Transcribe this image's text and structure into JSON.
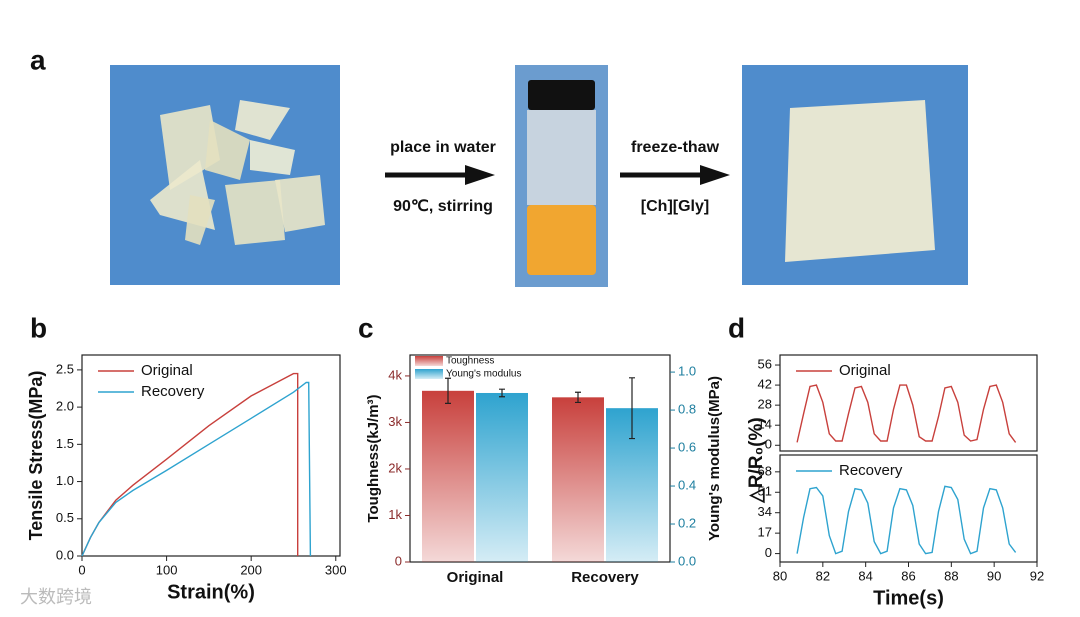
{
  "panel_a": {
    "label": "a",
    "step1_top": "place in water",
    "step1_bottom": "90℃, stirring",
    "step2_top": "freeze-thaw",
    "step2_bottom": "[Ch][Gly]"
  },
  "watermark": "大数跨境",
  "chart_data": [
    {
      "type": "line",
      "panel": "b",
      "xlabel": "Strain(%)",
      "ylabel": "Tensile Stress(MPa)",
      "xlim": [
        0,
        305
      ],
      "xticks": [
        0,
        100,
        200,
        300
      ],
      "ylim": [
        0,
        2.7
      ],
      "yticks": [
        {
          "value": 0,
          "label": "0.0"
        },
        0.5,
        {
          "value": 1,
          "label": "1.0"
        },
        1.5,
        {
          "value": 2,
          "label": "2.0"
        },
        2.5
      ],
      "legend": "upper left",
      "series": [
        {
          "name": "Original",
          "color": "#c8403c",
          "x": [
            0,
            10,
            20,
            40,
            60,
            100,
            150,
            200,
            250,
            255,
            255
          ],
          "values": [
            0,
            0.25,
            0.45,
            0.75,
            0.95,
            1.3,
            1.75,
            2.15,
            2.45,
            2.45,
            0
          ]
        },
        {
          "name": "Recovery",
          "color": "#2ea3cf",
          "x": [
            0,
            10,
            20,
            40,
            60,
            100,
            150,
            200,
            250,
            265,
            268,
            270
          ],
          "values": [
            0,
            0.25,
            0.45,
            0.72,
            0.88,
            1.15,
            1.5,
            1.85,
            2.2,
            2.33,
            2.33,
            0
          ]
        }
      ]
    },
    {
      "type": "bar",
      "panel": "c",
      "ylabel": "Toughness(kJ/m³)",
      "y2label": "Young's modulus(MPa)",
      "categories": [
        "Original",
        "Recovery"
      ],
      "ylim": [
        0,
        4450
      ],
      "yticks": [
        0,
        {
          "value": 1000,
          "label": "1k"
        },
        {
          "value": 2000,
          "label": "2k"
        },
        {
          "value": 3000,
          "label": "3k"
        },
        {
          "value": 4000,
          "label": "4k"
        }
      ],
      "y2lim": [
        0,
        1.09
      ],
      "y2ticks": [
        {
          "value": 0,
          "label": "0.0"
        },
        0.2,
        0.4,
        0.6,
        0.8,
        {
          "value": 1,
          "label": "1.0"
        }
      ],
      "legend": "upper left",
      "series": [
        {
          "name": "Toughness",
          "color": "#c8403c",
          "values": [
            3680,
            3540
          ],
          "errors": [
            270,
            110
          ]
        },
        {
          "name": "Young's modulus",
          "color": "#2ea3cf",
          "axis": "y2",
          "values": [
            0.89,
            0.81
          ],
          "errors": [
            0.02,
            0.16
          ]
        }
      ]
    },
    {
      "type": "line",
      "panel": "d",
      "ylabel": "△R/R₀(%)",
      "xlim": [
        80,
        92
      ],
      "ylim": [
        -4,
        63
      ],
      "yticks": [
        0,
        14,
        28,
        42,
        56
      ],
      "legend": "upper left",
      "x": [
        80.8,
        81.1,
        81.4,
        81.7,
        82.0,
        82.3,
        82.6,
        82.9,
        83.2,
        83.5,
        83.8,
        84.1,
        84.4,
        84.7,
        85.0,
        85.3,
        85.6,
        85.9,
        86.2,
        86.5,
        86.8,
        87.1,
        87.4,
        87.7,
        88.0,
        88.3,
        88.6,
        88.9,
        89.2,
        89.5,
        89.8,
        90.1,
        90.4,
        90.7,
        91.0
      ],
      "series": [
        {
          "name": "Original",
          "color": "#c8403c",
          "values": [
            2,
            22,
            41,
            42,
            30,
            8,
            3,
            3,
            22,
            40,
            41,
            30,
            8,
            3,
            3,
            25,
            42,
            42,
            28,
            6,
            3,
            3,
            20,
            40,
            41,
            30,
            7,
            3,
            4,
            25,
            41,
            42,
            30,
            8,
            2
          ]
        }
      ]
    },
    {
      "type": "line",
      "xlabel": "Time(s)",
      "xlim": [
        80,
        92
      ],
      "xticks": [
        80,
        82,
        84,
        86,
        88,
        90,
        92
      ],
      "ylim": [
        -7,
        82
      ],
      "yticks": [
        0,
        17,
        34,
        51,
        68
      ],
      "legend": "upper left",
      "x": [
        80.8,
        81.1,
        81.4,
        81.7,
        82.0,
        82.3,
        82.6,
        82.9,
        83.2,
        83.5,
        83.8,
        84.1,
        84.4,
        84.7,
        85.0,
        85.3,
        85.6,
        85.9,
        86.2,
        86.5,
        86.8,
        87.1,
        87.4,
        87.7,
        88.0,
        88.3,
        88.6,
        88.9,
        89.2,
        89.5,
        89.8,
        90.1,
        90.4,
        90.7,
        91.0
      ],
      "series": [
        {
          "name": "Recovery",
          "color": "#2ea3cf",
          "values": [
            0,
            30,
            54,
            55,
            48,
            15,
            0,
            2,
            35,
            54,
            53,
            42,
            10,
            0,
            2,
            38,
            54,
            53,
            40,
            8,
            0,
            1,
            35,
            56,
            55,
            45,
            12,
            0,
            2,
            38,
            54,
            53,
            38,
            8,
            1
          ]
        }
      ]
    }
  ]
}
